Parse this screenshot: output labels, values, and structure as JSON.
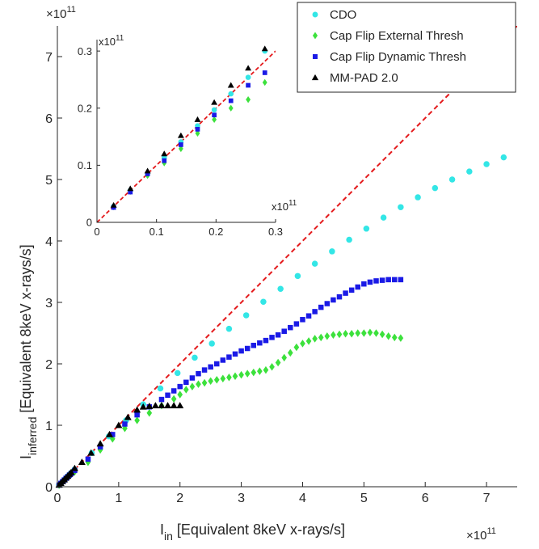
{
  "chart_data": [
    {
      "type": "scatter",
      "title": "",
      "xlabel": {
        "main": "I",
        "sub": "in",
        "rest": " [Equivalent 8keV x-rays/s]"
      },
      "ylabel": {
        "main": "I",
        "sub": "inferred",
        "rest": " [Equivalent 8keV x-rays/s]"
      },
      "x_multiplier": {
        "base": "×10",
        "exp": "11"
      },
      "y_multiplier": {
        "base": "×10",
        "exp": "11"
      },
      "xlim": [
        0,
        7.5
      ],
      "ylim": [
        0,
        7.5
      ],
      "xticks": [
        0,
        1,
        2,
        3,
        4,
        5,
        6,
        7
      ],
      "yticks": [
        0,
        1,
        2,
        3,
        4,
        5,
        6,
        7
      ],
      "grid": false,
      "legend_position": "top-right",
      "reference_line": {
        "style": "dashed",
        "color": "#e41a1c",
        "slope": 1
      },
      "series": [
        {
          "name": "CDO",
          "marker": "circle",
          "color": "#33e6e6",
          "x": [
            0.028,
            0.056,
            0.085,
            0.113,
            0.141,
            0.169,
            0.197,
            0.225,
            0.282,
            0.56,
            0.84,
            1.12,
            1.4,
            1.68,
            1.96,
            2.24,
            2.52,
            2.8,
            3.08,
            3.36,
            3.64,
            3.92,
            4.2,
            4.48,
            4.76,
            5.04,
            5.32,
            5.6,
            5.88,
            6.16,
            6.44,
            6.72,
            7.0,
            7.28
          ],
          "y": [
            0.028,
            0.056,
            0.085,
            0.113,
            0.141,
            0.169,
            0.197,
            0.225,
            0.282,
            0.55,
            0.82,
            1.08,
            1.34,
            1.6,
            1.85,
            2.1,
            2.33,
            2.57,
            2.79,
            3.01,
            3.22,
            3.43,
            3.63,
            3.83,
            4.02,
            4.2,
            4.38,
            4.55,
            4.71,
            4.86,
            5.0,
            5.13,
            5.25,
            5.36
          ]
        },
        {
          "name": "Cap Flip External Thresh",
          "marker": "diamond",
          "color": "#3ce13c",
          "x": [
            0.028,
            0.056,
            0.085,
            0.113,
            0.141,
            0.169,
            0.197,
            0.225,
            0.282,
            0.5,
            0.7,
            0.9,
            1.1,
            1.3,
            1.5,
            1.7,
            1.9,
            2.0,
            2.1,
            2.2,
            2.3,
            2.4,
            2.5,
            2.6,
            2.7,
            2.8,
            2.9,
            3.0,
            3.1,
            3.2,
            3.3,
            3.4,
            3.5,
            3.6,
            3.7,
            3.8,
            3.9,
            4.0,
            4.1,
            4.2,
            4.3,
            4.4,
            4.5,
            4.6,
            4.7,
            4.8,
            4.9,
            5.0,
            5.1,
            5.2,
            5.3,
            5.4,
            5.5,
            5.6
          ],
          "y": [
            0.027,
            0.054,
            0.082,
            0.107,
            0.134,
            0.158,
            0.181,
            0.205,
            0.244,
            0.4,
            0.6,
            0.78,
            0.95,
            1.08,
            1.2,
            1.32,
            1.43,
            1.5,
            1.58,
            1.63,
            1.67,
            1.69,
            1.72,
            1.74,
            1.76,
            1.78,
            1.8,
            1.82,
            1.84,
            1.86,
            1.88,
            1.9,
            1.95,
            2.02,
            2.1,
            2.18,
            2.27,
            2.33,
            2.37,
            2.41,
            2.43,
            2.45,
            2.47,
            2.48,
            2.49,
            2.49,
            2.5,
            2.5,
            2.51,
            2.5,
            2.48,
            2.45,
            2.43,
            2.42
          ]
        },
        {
          "name": "Cap Flip Dynamic Thresh",
          "marker": "square",
          "color": "#1a1ae6",
          "x": [
            0.028,
            0.056,
            0.085,
            0.113,
            0.141,
            0.169,
            0.197,
            0.225,
            0.282,
            0.5,
            0.7,
            0.9,
            1.1,
            1.3,
            1.5,
            1.7,
            1.8,
            1.9,
            2.0,
            2.1,
            2.2,
            2.3,
            2.4,
            2.5,
            2.6,
            2.7,
            2.8,
            2.9,
            3.0,
            3.1,
            3.2,
            3.3,
            3.4,
            3.5,
            3.6,
            3.7,
            3.8,
            3.9,
            4.0,
            4.1,
            4.2,
            4.3,
            4.4,
            4.5,
            4.6,
            4.7,
            4.8,
            4.9,
            5.0,
            5.1,
            5.2,
            5.3,
            5.4,
            5.5,
            5.6
          ],
          "y": [
            0.027,
            0.055,
            0.083,
            0.11,
            0.138,
            0.164,
            0.19,
            0.215,
            0.265,
            0.45,
            0.65,
            0.85,
            1.02,
            1.17,
            1.3,
            1.42,
            1.49,
            1.56,
            1.63,
            1.7,
            1.77,
            1.84,
            1.9,
            1.95,
            2.0,
            2.06,
            2.11,
            2.16,
            2.21,
            2.25,
            2.3,
            2.34,
            2.38,
            2.43,
            2.47,
            2.53,
            2.59,
            2.65,
            2.72,
            2.78,
            2.85,
            2.92,
            2.98,
            3.04,
            3.09,
            3.15,
            3.2,
            3.25,
            3.3,
            3.33,
            3.35,
            3.36,
            3.37,
            3.37,
            3.37
          ]
        },
        {
          "name": "MM-PAD 2.0",
          "marker": "triangle",
          "color": "#000000",
          "x": [
            0.028,
            0.056,
            0.085,
            0.113,
            0.141,
            0.169,
            0.197,
            0.225,
            0.282,
            0.4,
            0.55,
            0.7,
            0.85,
            1.0,
            1.15,
            1.3,
            1.4,
            1.5,
            1.6,
            1.7,
            1.8,
            1.9,
            2.0
          ],
          "y": [
            0.029,
            0.058,
            0.088,
            0.117,
            0.146,
            0.175,
            0.205,
            0.235,
            0.3,
            0.4,
            0.55,
            0.7,
            0.85,
            1.0,
            1.13,
            1.25,
            1.3,
            1.31,
            1.32,
            1.32,
            1.32,
            1.32,
            1.32
          ]
        }
      ]
    },
    {
      "type": "scatter",
      "role": "inset",
      "title": "",
      "xlabel": "",
      "ylabel": "",
      "x_multiplier": {
        "base": "x10",
        "exp": "11"
      },
      "y_multiplier": {
        "base": "x10",
        "exp": "11"
      },
      "xlim": [
        0,
        0.3
      ],
      "ylim": [
        0,
        0.32
      ],
      "xticks": [
        0,
        0.1,
        0.2,
        0.3
      ],
      "xtick_labels": [
        "0",
        "0.1",
        "0.2",
        "0.3"
      ],
      "yticks": [
        0,
        0.1,
        0.2,
        0.3
      ],
      "ytick_labels": [
        "0",
        "0.1",
        "0.2",
        "0.3"
      ],
      "grid": false,
      "reference_line": {
        "style": "dashed",
        "color": "#e41a1c",
        "slope": 1
      },
      "series": [
        {
          "name": "CDO",
          "marker": "circle",
          "color": "#33e6e6",
          "x": [
            0.028,
            0.056,
            0.085,
            0.113,
            0.141,
            0.169,
            0.197,
            0.225,
            0.254,
            0.282
          ],
          "y": [
            0.028,
            0.056,
            0.085,
            0.113,
            0.141,
            0.169,
            0.197,
            0.225,
            0.254,
            0.3
          ]
        },
        {
          "name": "Cap Flip External Thresh",
          "marker": "diamond",
          "color": "#3ce13c",
          "x": [
            0.028,
            0.056,
            0.085,
            0.113,
            0.141,
            0.169,
            0.197,
            0.225,
            0.254,
            0.282
          ],
          "y": [
            0.027,
            0.054,
            0.082,
            0.104,
            0.129,
            0.156,
            0.18,
            0.2,
            0.215,
            0.245
          ]
        },
        {
          "name": "Cap Flip Dynamic Thresh",
          "marker": "square",
          "color": "#1a1ae6",
          "x": [
            0.028,
            0.056,
            0.085,
            0.113,
            0.141,
            0.169,
            0.197,
            0.225,
            0.254,
            0.282
          ],
          "y": [
            0.026,
            0.053,
            0.085,
            0.108,
            0.136,
            0.163,
            0.188,
            0.213,
            0.24,
            0.262
          ]
        },
        {
          "name": "MM-PAD 2.0",
          "marker": "triangle",
          "color": "#000000",
          "x": [
            0.028,
            0.056,
            0.085,
            0.113,
            0.141,
            0.169,
            0.197,
            0.225,
            0.254,
            0.282
          ],
          "y": [
            0.03,
            0.059,
            0.09,
            0.12,
            0.152,
            0.18,
            0.21,
            0.24,
            0.27,
            0.304
          ]
        }
      ]
    }
  ]
}
